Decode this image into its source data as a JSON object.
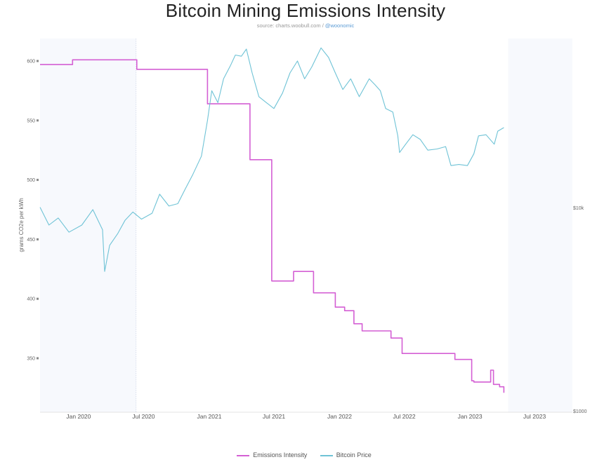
{
  "chart_data": {
    "type": "line",
    "title": "Bitcoin Mining Emissions Intensity",
    "source_prefix": "source: charts.woobull.com / ",
    "source_handle": "@woonomic",
    "ylabel": "grams CO2e per kWh",
    "ylim": [
      310,
      620
    ],
    "y_ticks": [
      600,
      550,
      500,
      450,
      400,
      350
    ],
    "y_tick_labels": [
      "600",
      "550",
      "500",
      "450",
      "400",
      "350"
    ],
    "right_axis_labels": [
      "$10k",
      "$1000"
    ],
    "x_ticks": [
      "2020-01",
      "2020-07",
      "2021-01",
      "2021-07",
      "2022-01",
      "2022-07",
      "2023-01",
      "2023-07"
    ],
    "x_tick_labels": [
      "Jan 2020",
      "Jul 2020",
      "Jan 2021",
      "Jul 2021",
      "Jan 2022",
      "Jul 2022",
      "Jan 2023",
      "Jul 2023"
    ],
    "series": [
      {
        "name": "Emissions Intensity",
        "color": "#d45fd4",
        "step": true,
        "points": [
          [
            "2019-09-15",
            597
          ],
          [
            "2019-12-15",
            601
          ],
          [
            "2020-06-12",
            593
          ],
          [
            "2020-12-27",
            564
          ],
          [
            "2021-04-25",
            517
          ],
          [
            "2021-06-25",
            415
          ],
          [
            "2021-08-25",
            423
          ],
          [
            "2021-10-20",
            405
          ],
          [
            "2021-12-20",
            393
          ],
          [
            "2022-01-15",
            390
          ],
          [
            "2022-02-10",
            379
          ],
          [
            "2022-03-05",
            373
          ],
          [
            "2022-05-25",
            367
          ],
          [
            "2022-06-25",
            354
          ],
          [
            "2022-11-20",
            349
          ],
          [
            "2023-01-06",
            331
          ],
          [
            "2023-01-12",
            330
          ],
          [
            "2023-02-28",
            340
          ],
          [
            "2023-03-08",
            328
          ],
          [
            "2023-03-25",
            326
          ],
          [
            "2023-04-06",
            321
          ]
        ]
      },
      {
        "name": "Bitcoin Price",
        "color": "#6fc3d6",
        "step": false,
        "points": [
          [
            "2019-09-15",
            477
          ],
          [
            "2019-10-10",
            462
          ],
          [
            "2019-11-05",
            468
          ],
          [
            "2019-12-05",
            456
          ],
          [
            "2020-01-10",
            462
          ],
          [
            "2020-02-10",
            475
          ],
          [
            "2020-03-08",
            458
          ],
          [
            "2020-03-14",
            423
          ],
          [
            "2020-03-28",
            445
          ],
          [
            "2020-04-20",
            455
          ],
          [
            "2020-05-10",
            466
          ],
          [
            "2020-06-01",
            473
          ],
          [
            "2020-06-25",
            467
          ],
          [
            "2020-07-25",
            472
          ],
          [
            "2020-08-15",
            488
          ],
          [
            "2020-09-10",
            478
          ],
          [
            "2020-10-05",
            480
          ],
          [
            "2020-10-25",
            492
          ],
          [
            "2020-11-15",
            504
          ],
          [
            "2020-12-10",
            520
          ],
          [
            "2020-12-27",
            550
          ],
          [
            "2021-01-08",
            575
          ],
          [
            "2021-01-25",
            565
          ],
          [
            "2021-02-10",
            585
          ],
          [
            "2021-03-01",
            596
          ],
          [
            "2021-03-15",
            605
          ],
          [
            "2021-04-01",
            604
          ],
          [
            "2021-04-15",
            610
          ],
          [
            "2021-05-01",
            590
          ],
          [
            "2021-05-20",
            570
          ],
          [
            "2021-06-10",
            565
          ],
          [
            "2021-07-01",
            560
          ],
          [
            "2021-07-25",
            573
          ],
          [
            "2021-08-15",
            590
          ],
          [
            "2021-09-05",
            600
          ],
          [
            "2021-09-25",
            585
          ],
          [
            "2021-10-15",
            595
          ],
          [
            "2021-11-10",
            611
          ],
          [
            "2021-12-01",
            603
          ],
          [
            "2021-12-20",
            590
          ],
          [
            "2022-01-10",
            576
          ],
          [
            "2022-02-01",
            585
          ],
          [
            "2022-02-25",
            570
          ],
          [
            "2022-03-25",
            585
          ],
          [
            "2022-04-10",
            580
          ],
          [
            "2022-04-25",
            575
          ],
          [
            "2022-05-10",
            560
          ],
          [
            "2022-05-30",
            557
          ],
          [
            "2022-06-13",
            537
          ],
          [
            "2022-06-18",
            523
          ],
          [
            "2022-07-05",
            530
          ],
          [
            "2022-07-25",
            538
          ],
          [
            "2022-08-15",
            534
          ],
          [
            "2022-09-05",
            525
          ],
          [
            "2022-10-01",
            526
          ],
          [
            "2022-10-25",
            528
          ],
          [
            "2022-11-09",
            512
          ],
          [
            "2022-12-01",
            513
          ],
          [
            "2022-12-25",
            512
          ],
          [
            "2023-01-12",
            522
          ],
          [
            "2023-01-25",
            537
          ],
          [
            "2023-02-15",
            538
          ],
          [
            "2023-03-10",
            530
          ],
          [
            "2023-03-20",
            541
          ],
          [
            "2023-04-06",
            544
          ]
        ]
      }
    ]
  }
}
